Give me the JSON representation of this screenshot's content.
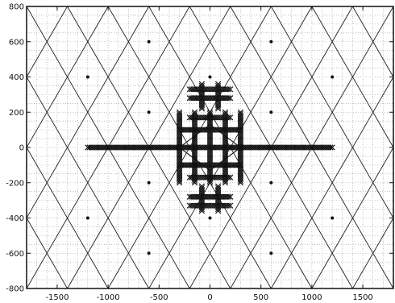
{
  "chart_data": {
    "type": "scatter",
    "title": "",
    "xlabel": "",
    "ylabel": "",
    "xlim": [
      -1800,
      1800
    ],
    "ylim": [
      -800,
      800
    ],
    "grid": true,
    "x_ticks": [
      -1500,
      -1000,
      -500,
      0,
      500,
      1000,
      1500
    ],
    "y_ticks": [
      -800,
      -600,
      -400,
      -200,
      0,
      200,
      400,
      600,
      800
    ],
    "diagonal_lines": [
      {
        "x1": -1800,
        "y1": -800,
        "x2": -200,
        "y2": 800
      },
      {
        "x1": -1800,
        "y1": -400,
        "x2": -600,
        "y2": 800
      },
      {
        "x1": -1800,
        "y1": 0,
        "x2": -1000,
        "y2": 800
      },
      {
        "x1": -1800,
        "y1": 400,
        "x2": -1400,
        "y2": 800
      },
      {
        "x1": -1400,
        "y1": -800,
        "x2": 200,
        "y2": 800
      },
      {
        "x1": -1000,
        "y1": -800,
        "x2": 600,
        "y2": 800
      },
      {
        "x1": -600,
        "y1": -800,
        "x2": 1000,
        "y2": 800
      },
      {
        "x1": -200,
        "y1": -800,
        "x2": 1400,
        "y2": 800
      },
      {
        "x1": 200,
        "y1": -800,
        "x2": 1800,
        "y2": 800
      },
      {
        "x1": 600,
        "y1": -800,
        "x2": 1800,
        "y2": 400
      },
      {
        "x1": 1000,
        "y1": -800,
        "x2": 1800,
        "y2": 0
      },
      {
        "x1": 1400,
        "y1": -800,
        "x2": 1800,
        "y2": -400
      },
      {
        "x1": -1800,
        "y1": 800,
        "x2": -200,
        "y2": -800
      },
      {
        "x1": -1800,
        "y1": 400,
        "x2": -600,
        "y2": -800
      },
      {
        "x1": -1800,
        "y1": 0,
        "x2": -1000,
        "y2": -800
      },
      {
        "x1": -1800,
        "y1": -400,
        "x2": -1400,
        "y2": -800
      },
      {
        "x1": -1400,
        "y1": 800,
        "x2": 200,
        "y2": -800
      },
      {
        "x1": -1000,
        "y1": 800,
        "x2": 600,
        "y2": -800
      },
      {
        "x1": -600,
        "y1": 800,
        "x2": 1000,
        "y2": -800
      },
      {
        "x1": -200,
        "y1": 800,
        "x2": 1400,
        "y2": -800
      },
      {
        "x1": 200,
        "y1": 800,
        "x2": 1800,
        "y2": -800
      },
      {
        "x1": 600,
        "y1": 800,
        "x2": 1800,
        "y2": -400
      },
      {
        "x1": 1000,
        "y1": 800,
        "x2": 1800,
        "y2": 0
      },
      {
        "x1": 1400,
        "y1": 800,
        "x2": 1800,
        "y2": 400
      }
    ],
    "points": [
      {
        "x": -600,
        "y": 600
      },
      {
        "x": 600,
        "y": 600
      },
      {
        "x": -1200,
        "y": 400
      },
      {
        "x": 0,
        "y": 400
      },
      {
        "x": 1200,
        "y": 400
      },
      {
        "x": -600,
        "y": 200
      },
      {
        "x": 600,
        "y": 200
      },
      {
        "x": -600,
        "y": -200
      },
      {
        "x": 600,
        "y": -200
      },
      {
        "x": -1200,
        "y": -400
      },
      {
        "x": 0,
        "y": -400
      },
      {
        "x": 1200,
        "y": -400
      },
      {
        "x": -600,
        "y": -600
      },
      {
        "x": 600,
        "y": -600
      }
    ],
    "marker_lines": [
      {
        "x1": -1200,
        "y1": 0,
        "x2": 1200,
        "y2": 0
      },
      {
        "x1": -300,
        "y1": -100,
        "x2": 300,
        "y2": -100
      },
      {
        "x1": -300,
        "y1": 100,
        "x2": 300,
        "y2": 100
      },
      {
        "x1": -200,
        "y1": -170,
        "x2": 200,
        "y2": -170
      },
      {
        "x1": -200,
        "y1": 170,
        "x2": 200,
        "y2": 170
      },
      {
        "x1": -300,
        "y1": -200,
        "x2": -300,
        "y2": 200
      },
      {
        "x1": -150,
        "y1": -200,
        "x2": -150,
        "y2": 200
      },
      {
        "x1": 0,
        "y1": -200,
        "x2": 0,
        "y2": 200
      },
      {
        "x1": 150,
        "y1": -200,
        "x2": 150,
        "y2": 200
      },
      {
        "x1": 300,
        "y1": -200,
        "x2": 300,
        "y2": 200
      },
      {
        "x1": -200,
        "y1": 280,
        "x2": 200,
        "y2": 280
      },
      {
        "x1": -200,
        "y1": 330,
        "x2": 200,
        "y2": 330
      },
      {
        "x1": -80,
        "y1": 220,
        "x2": -80,
        "y2": 360
      },
      {
        "x1": 80,
        "y1": 220,
        "x2": 80,
        "y2": 360
      },
      {
        "x1": -200,
        "y1": -280,
        "x2": 200,
        "y2": -280
      },
      {
        "x1": -200,
        "y1": -330,
        "x2": 200,
        "y2": -330
      },
      {
        "x1": -80,
        "y1": -220,
        "x2": -80,
        "y2": -360
      },
      {
        "x1": 80,
        "y1": -220,
        "x2": 80,
        "y2": -360
      }
    ],
    "diamond": [
      {
        "x": -300,
        "y": 0
      },
      {
        "x": 0,
        "y": 130
      },
      {
        "x": 300,
        "y": 0
      },
      {
        "x": 0,
        "y": -130
      }
    ],
    "colors": {
      "lines": "#222222",
      "markers": "#111111",
      "grid": "#9a9a9a"
    }
  }
}
